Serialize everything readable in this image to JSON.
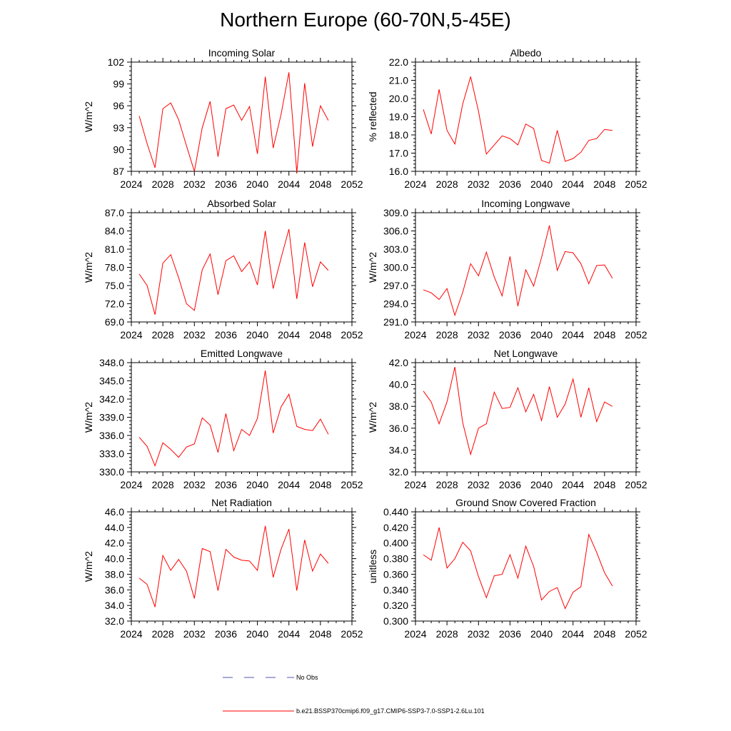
{
  "figure": {
    "title": "Northern Europe (60-70N,5-45E)"
  },
  "colors": {
    "series": "#ff0000",
    "obs": "#5555aa",
    "axis": "#000000"
  },
  "legend": {
    "obs_label": "No Obs",
    "model_label": "b.e21.BSSP370cmip6.f09_g17.CMIP6-SSP3-7.0-SSP1-2.6Lu.101"
  },
  "chart_data": [
    {
      "type": "line",
      "title": "Incoming Solar",
      "xlabel": "",
      "ylabel": "W/m^2",
      "xlim": [
        2024,
        2052
      ],
      "ylim": [
        87,
        102
      ],
      "xticks": [
        2024,
        2028,
        2032,
        2036,
        2040,
        2044,
        2048,
        2052
      ],
      "yticks": [
        "87",
        "90",
        "93",
        "96",
        "99",
        "102"
      ],
      "x": [
        2025,
        2026,
        2027,
        2028,
        2029,
        2030,
        2031,
        2032,
        2033,
        2034,
        2035,
        2036,
        2037,
        2038,
        2039,
        2040,
        2041,
        2042,
        2043,
        2044,
        2045,
        2046,
        2047,
        2048,
        2049
      ],
      "series": [
        {
          "values": [
            94.6,
            90.8,
            87.5,
            95.6,
            96.4,
            94.1,
            90.5,
            87.0,
            93.0,
            96.6,
            89.0,
            95.6,
            96.1,
            94.0,
            95.9,
            89.4,
            100.0,
            90.2,
            94.8,
            100.6,
            86.8,
            99.1,
            90.4,
            96.0,
            94.0
          ]
        }
      ]
    },
    {
      "type": "line",
      "title": "Albedo",
      "xlabel": "",
      "ylabel": "% reflected",
      "xlim": [
        2024,
        2052
      ],
      "ylim": [
        16.0,
        22.0
      ],
      "xticks": [
        2024,
        2028,
        2032,
        2036,
        2040,
        2044,
        2048,
        2052
      ],
      "yticks": [
        "16.0",
        "17.0",
        "18.0",
        "19.0",
        "20.0",
        "21.0",
        "22.0"
      ],
      "x": [
        2025,
        2026,
        2027,
        2028,
        2029,
        2030,
        2031,
        2032,
        2033,
        2034,
        2035,
        2036,
        2037,
        2038,
        2039,
        2040,
        2041,
        2042,
        2043,
        2044,
        2045,
        2046,
        2047,
        2048,
        2049
      ],
      "series": [
        {
          "values": [
            19.4,
            18.05,
            20.5,
            18.25,
            17.5,
            19.7,
            21.2,
            19.3,
            16.95,
            17.45,
            17.95,
            17.8,
            17.45,
            18.6,
            18.35,
            16.6,
            16.45,
            18.25,
            16.55,
            16.7,
            17.05,
            17.7,
            17.8,
            18.3,
            18.25
          ]
        }
      ]
    },
    {
      "type": "line",
      "title": "Absorbed Solar",
      "xlabel": "",
      "ylabel": "W/m^2",
      "xlim": [
        2024,
        2052
      ],
      "ylim": [
        69.0,
        87.0
      ],
      "xticks": [
        2024,
        2028,
        2032,
        2036,
        2040,
        2044,
        2048,
        2052
      ],
      "yticks": [
        "69.0",
        "72.0",
        "75.0",
        "78.0",
        "81.0",
        "84.0",
        "87.0"
      ],
      "x": [
        2025,
        2026,
        2027,
        2028,
        2029,
        2030,
        2031,
        2032,
        2033,
        2034,
        2035,
        2036,
        2037,
        2038,
        2039,
        2040,
        2041,
        2042,
        2043,
        2044,
        2045,
        2046,
        2047,
        2048,
        2049
      ],
      "series": [
        {
          "values": [
            76.9,
            75.0,
            70.2,
            78.7,
            80.1,
            76.3,
            72.0,
            70.9,
            77.6,
            80.2,
            73.5,
            79.1,
            79.9,
            77.3,
            78.9,
            75.1,
            84.0,
            74.5,
            79.5,
            84.3,
            72.8,
            82.1,
            74.8,
            78.9,
            77.5
          ]
        }
      ]
    },
    {
      "type": "line",
      "title": "Incoming Longwave",
      "xlabel": "",
      "ylabel": "W/m^2",
      "xlim": [
        2024,
        2052
      ],
      "ylim": [
        291.0,
        309.0
      ],
      "xticks": [
        2024,
        2028,
        2032,
        2036,
        2040,
        2044,
        2048,
        2052
      ],
      "yticks": [
        "291.0",
        "294.0",
        "297.0",
        "300.0",
        "303.0",
        "306.0",
        "309.0"
      ],
      "x": [
        2025,
        2026,
        2027,
        2028,
        2029,
        2030,
        2031,
        2032,
        2033,
        2034,
        2035,
        2036,
        2037,
        2038,
        2039,
        2040,
        2041,
        2042,
        2043,
        2044,
        2045,
        2046,
        2047,
        2048,
        2049
      ],
      "series": [
        {
          "values": [
            296.3,
            295.8,
            294.7,
            296.5,
            292.1,
            295.9,
            300.6,
            298.6,
            302.5,
            298.4,
            295.3,
            301.8,
            293.6,
            299.6,
            296.9,
            301.6,
            306.9,
            299.5,
            302.6,
            302.4,
            300.6,
            297.3,
            300.3,
            300.4,
            298.2
          ]
        }
      ]
    },
    {
      "type": "line",
      "title": "Emitted Longwave",
      "xlabel": "",
      "ylabel": "W/m^2",
      "xlim": [
        2024,
        2052
      ],
      "ylim": [
        330.0,
        348.0
      ],
      "xticks": [
        2024,
        2028,
        2032,
        2036,
        2040,
        2044,
        2048,
        2052
      ],
      "yticks": [
        "330.0",
        "333.0",
        "336.0",
        "339.0",
        "342.0",
        "345.0",
        "348.0"
      ],
      "x": [
        2025,
        2026,
        2027,
        2028,
        2029,
        2030,
        2031,
        2032,
        2033,
        2034,
        2035,
        2036,
        2037,
        2038,
        2039,
        2040,
        2041,
        2042,
        2043,
        2044,
        2045,
        2046,
        2047,
        2048,
        2049
      ],
      "series": [
        {
          "values": [
            335.7,
            334.2,
            331.0,
            334.8,
            333.7,
            332.4,
            334.1,
            334.6,
            338.9,
            337.7,
            333.2,
            339.6,
            333.5,
            337.0,
            336.0,
            338.8,
            346.7,
            336.4,
            340.7,
            342.8,
            337.5,
            337.0,
            336.8,
            338.7,
            336.2
          ]
        }
      ]
    },
    {
      "type": "line",
      "title": "Net Longwave",
      "xlabel": "",
      "ylabel": "W/m^2",
      "xlim": [
        2024,
        2052
      ],
      "ylim": [
        32.0,
        42.0
      ],
      "xticks": [
        2024,
        2028,
        2032,
        2036,
        2040,
        2044,
        2048,
        2052
      ],
      "yticks": [
        "32.0",
        "34.0",
        "36.0",
        "38.0",
        "40.0",
        "42.0"
      ],
      "x": [
        2025,
        2026,
        2027,
        2028,
        2029,
        2030,
        2031,
        2032,
        2033,
        2034,
        2035,
        2036,
        2037,
        2038,
        2039,
        2040,
        2041,
        2042,
        2043,
        2044,
        2045,
        2046,
        2047,
        2048,
        2049
      ],
      "series": [
        {
          "values": [
            39.4,
            38.4,
            36.4,
            38.4,
            41.6,
            36.5,
            33.6,
            36.0,
            36.4,
            39.3,
            37.8,
            37.9,
            39.7,
            37.5,
            39.1,
            36.7,
            39.8,
            37.0,
            38.2,
            40.5,
            37.0,
            39.7,
            36.6,
            38.4,
            38.0
          ]
        }
      ]
    },
    {
      "type": "line",
      "title": "Net Radiation",
      "xlabel": "",
      "ylabel": "W/m^2",
      "xlim": [
        2024,
        2052
      ],
      "ylim": [
        32.0,
        46.0
      ],
      "xticks": [
        2024,
        2028,
        2032,
        2036,
        2040,
        2044,
        2048,
        2052
      ],
      "yticks": [
        "32.0",
        "34.0",
        "36.0",
        "38.0",
        "40.0",
        "42.0",
        "44.0",
        "46.0"
      ],
      "x": [
        2025,
        2026,
        2027,
        2028,
        2029,
        2030,
        2031,
        2032,
        2033,
        2034,
        2035,
        2036,
        2037,
        2038,
        2039,
        2040,
        2041,
        2042,
        2043,
        2044,
        2045,
        2046,
        2047,
        2048,
        2049
      ],
      "series": [
        {
          "values": [
            37.5,
            36.7,
            33.8,
            40.4,
            38.5,
            39.9,
            38.4,
            34.9,
            41.3,
            40.9,
            35.9,
            41.2,
            40.2,
            39.8,
            39.7,
            38.5,
            44.2,
            37.6,
            41.2,
            43.8,
            35.9,
            42.4,
            38.4,
            40.6,
            39.4
          ]
        }
      ]
    },
    {
      "type": "line",
      "title": "Ground Snow Covered Fraction",
      "xlabel": "",
      "ylabel": "unitless",
      "xlim": [
        2024,
        2052
      ],
      "ylim": [
        0.3,
        0.44
      ],
      "xticks": [
        2024,
        2028,
        2032,
        2036,
        2040,
        2044,
        2048,
        2052
      ],
      "yticks": [
        "0.300",
        "0.320",
        "0.340",
        "0.360",
        "0.380",
        "0.400",
        "0.420",
        "0.440"
      ],
      "x": [
        2025,
        2026,
        2027,
        2028,
        2029,
        2030,
        2031,
        2032,
        2033,
        2034,
        2035,
        2036,
        2037,
        2038,
        2039,
        2040,
        2041,
        2042,
        2043,
        2044,
        2045,
        2046,
        2047,
        2048,
        2049
      ],
      "series": [
        {
          "values": [
            0.385,
            0.378,
            0.42,
            0.368,
            0.38,
            0.401,
            0.39,
            0.357,
            0.33,
            0.358,
            0.36,
            0.385,
            0.355,
            0.396,
            0.37,
            0.327,
            0.338,
            0.343,
            0.316,
            0.337,
            0.344,
            0.411,
            0.388,
            0.362,
            0.345
          ]
        }
      ]
    }
  ]
}
